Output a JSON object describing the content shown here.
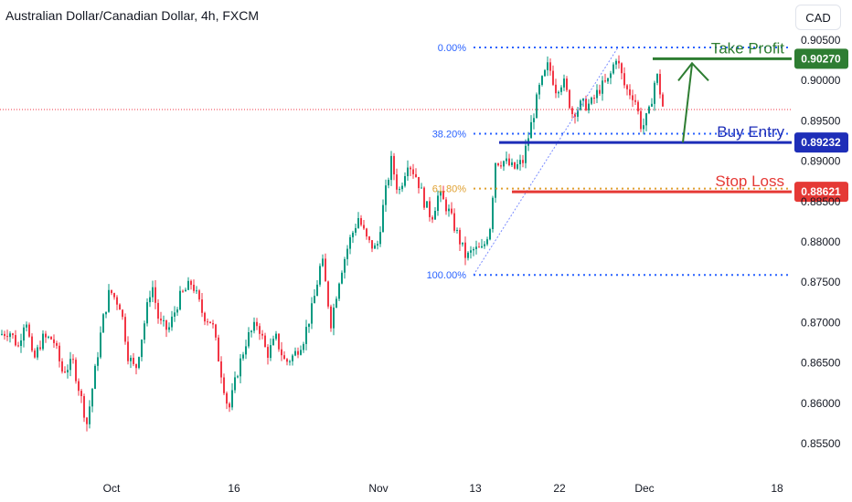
{
  "header": {
    "title": "Australian Dollar/Canadian Dollar, 4h, FXCM",
    "currency_button": "CAD"
  },
  "colors": {
    "up": "#089981",
    "down": "#f23645",
    "take_profit": "#2e7d32",
    "buy_entry": "#1e2eb8",
    "stop_loss": "#e53935",
    "fib": "#2962ff",
    "fib_mid": "#e0a030",
    "axis_text": "#131722"
  },
  "chart_data": {
    "type": "candlestick",
    "y_axis": {
      "ticks": [
        "0.90500",
        "0.90000",
        "0.89500",
        "0.89000",
        "0.88500",
        "0.88000",
        "0.87500",
        "0.87000",
        "0.86500",
        "0.86000",
        "0.85500"
      ],
      "ylim": [
        0.8525,
        0.9065
      ]
    },
    "x_axis": {
      "ticks": [
        "Oct",
        "16",
        "Nov",
        "13",
        "22",
        "Dec",
        "18"
      ]
    },
    "fibonacci": [
      {
        "label": "0.00%",
        "price": 0.9041
      },
      {
        "label": "38.20%",
        "price": 0.8934
      },
      {
        "label": "61.80%",
        "price": 0.8866
      },
      {
        "label": "100.00%",
        "price": 0.8759
      }
    ],
    "levels": [
      {
        "name": "Take Profit",
        "label": "Take Profit",
        "price": 0.9027,
        "price_label": "0.90270",
        "key": "take_profit"
      },
      {
        "name": "Buy Entry",
        "label": "Buy Entry",
        "price": 0.89232,
        "price_label": "0.89232",
        "key": "buy_entry"
      },
      {
        "name": "Stop Loss",
        "label": "Stop Loss",
        "price": 0.88621,
        "price_label": "0.88621",
        "key": "stop_loss"
      }
    ],
    "current_price": 0.8964,
    "price_path": [
      [
        0,
        0.8685
      ],
      [
        10,
        0.869
      ],
      [
        20,
        0.867
      ],
      [
        28,
        0.871
      ],
      [
        36,
        0.865
      ],
      [
        46,
        0.868
      ],
      [
        58,
        0.868
      ],
      [
        68,
        0.864
      ],
      [
        80,
        0.865
      ],
      [
        88,
        0.861
      ],
      [
        95,
        0.8575
      ],
      [
        104,
        0.864
      ],
      [
        112,
        0.87
      ],
      [
        120,
        0.874
      ],
      [
        132,
        0.872
      ],
      [
        140,
        0.866
      ],
      [
        148,
        0.864
      ],
      [
        158,
        0.87
      ],
      [
        166,
        0.875
      ],
      [
        174,
        0.87
      ],
      [
        184,
        0.869
      ],
      [
        196,
        0.873
      ],
      [
        210,
        0.875
      ],
      [
        222,
        0.871
      ],
      [
        232,
        0.87
      ],
      [
        240,
        0.865
      ],
      [
        250,
        0.859
      ],
      [
        260,
        0.864
      ],
      [
        270,
        0.868
      ],
      [
        282,
        0.87
      ],
      [
        292,
        0.866
      ],
      [
        302,
        0.868
      ],
      [
        312,
        0.865
      ],
      [
        322,
        0.866
      ],
      [
        332,
        0.868
      ],
      [
        342,
        0.872
      ],
      [
        352,
        0.878
      ],
      [
        362,
        0.87
      ],
      [
        372,
        0.876
      ],
      [
        382,
        0.88
      ],
      [
        392,
        0.883
      ],
      [
        402,
        0.88
      ],
      [
        412,
        0.879
      ],
      [
        420,
        0.885
      ],
      [
        428,
        0.89
      ],
      [
        436,
        0.886
      ],
      [
        446,
        0.89
      ],
      [
        456,
        0.888
      ],
      [
        464,
        0.885
      ],
      [
        472,
        0.883
      ],
      [
        480,
        0.886
      ],
      [
        490,
        0.884
      ],
      [
        500,
        0.881
      ],
      [
        510,
        0.878
      ],
      [
        518,
        0.879
      ],
      [
        528,
        0.879
      ],
      [
        536,
        0.882
      ],
      [
        542,
        0.89
      ],
      [
        552,
        0.89
      ],
      [
        562,
        0.889
      ],
      [
        572,
        0.89
      ],
      [
        582,
        0.895
      ],
      [
        590,
        0.899
      ],
      [
        600,
        0.902
      ],
      [
        608,
        0.899
      ],
      [
        616,
        0.9
      ],
      [
        626,
        0.896
      ],
      [
        636,
        0.897
      ],
      [
        646,
        0.897
      ],
      [
        656,
        0.899
      ],
      [
        666,
        0.9
      ],
      [
        674,
        0.903
      ],
      [
        684,
        0.899
      ],
      [
        694,
        0.898
      ],
      [
        702,
        0.894
      ],
      [
        710,
        0.896
      ],
      [
        718,
        0.901
      ],
      [
        726,
        0.8962
      ]
    ]
  }
}
